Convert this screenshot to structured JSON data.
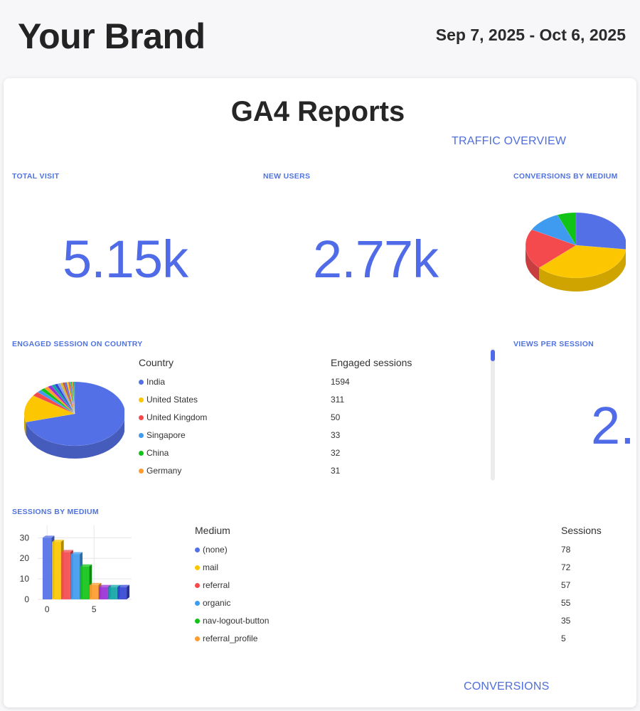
{
  "header": {
    "brand": "Your Brand",
    "date_range": "Sep 7, 2025 - Oct 6, 2025"
  },
  "report": {
    "title": "GA4 Reports",
    "traffic_overview_label": "TRAFFIC OVERVIEW",
    "conversions_label": "CONVERSIONS"
  },
  "widgets": {
    "total_visit": {
      "label": "TOTAL VISIT",
      "value": "5.15k"
    },
    "new_users": {
      "label": "NEW USERS",
      "value": "2.77k"
    },
    "conversions_by_medium": {
      "label": "CONVERSIONS BY MEDIUM"
    },
    "engaged_session_on_country": {
      "label": "ENGAGED SESSION ON COUNTRY",
      "col_country": "Country",
      "col_sessions": "Engaged sessions",
      "rows": [
        {
          "name": "India",
          "value": "1594",
          "color": "#5470e6"
        },
        {
          "name": "United States",
          "value": "311",
          "color": "#fcc700"
        },
        {
          "name": "United Kingdom",
          "value": "50",
          "color": "#f44a4e"
        },
        {
          "name": "Singapore",
          "value": "33",
          "color": "#3f9bf0"
        },
        {
          "name": "China",
          "value": "32",
          "color": "#11c316"
        },
        {
          "name": "Germany",
          "value": "31",
          "color": "#ff9b2f"
        }
      ]
    },
    "views_per_session": {
      "label": "VIEWS PER SESSION",
      "value": "2."
    },
    "sessions_by_medium": {
      "label": "SESSIONS BY MEDIUM",
      "col_medium": "Medium",
      "col_sessions": "Sessions",
      "rows": [
        {
          "name": "(none)",
          "value": "78",
          "color": "#5470e6"
        },
        {
          "name": "mail",
          "value": "72",
          "color": "#fcc700"
        },
        {
          "name": "referral",
          "value": "57",
          "color": "#f44a4e"
        },
        {
          "name": "organic",
          "value": "55",
          "color": "#3f9bf0"
        },
        {
          "name": "nav-logout-button",
          "value": "35",
          "color": "#11c316"
        },
        {
          "name": "referral_profile",
          "value": "5",
          "color": "#ff9b2f"
        }
      ]
    }
  },
  "chart_data": [
    {
      "type": "pie",
      "id": "conversions-by-medium",
      "labels": [
        "(none)",
        "mail",
        "referral",
        "organic",
        "nav-logout-button"
      ],
      "values": [
        27,
        36,
        20,
        11,
        6
      ],
      "colors": [
        "#5470e6",
        "#fcc700",
        "#f44a4e",
        "#3f9bf0",
        "#11c316"
      ]
    },
    {
      "type": "pie",
      "id": "engaged-session-on-country",
      "labels": [
        "India",
        "United States",
        "United Kingdom",
        "Singapore",
        "China",
        "Germany"
      ],
      "values": [
        1594,
        311,
        50,
        33,
        32,
        31
      ],
      "other_values": [
        28,
        25,
        22,
        20,
        18,
        16,
        14,
        12,
        10,
        9,
        8,
        7,
        6,
        5
      ],
      "colors": [
        "#5470e6",
        "#fcc700",
        "#f44a4e",
        "#3f9bf0",
        "#11c316",
        "#ff9b2f",
        "#9b2fd6",
        "#10a5a5",
        "#3345d6",
        "#7ea0f3",
        "#d6b62f",
        "#c05050"
      ]
    },
    {
      "type": "bar",
      "id": "sessions-by-medium",
      "x": [
        0,
        1,
        2,
        3,
        4,
        5,
        6,
        7,
        8
      ],
      "values": [
        30,
        28,
        23,
        22,
        16,
        7,
        6,
        6,
        6
      ],
      "colors": [
        "#5470e6",
        "#fcc700",
        "#f44a4e",
        "#3f9bf0",
        "#11c316",
        "#ff9b2f",
        "#9b2fd6",
        "#10a5a5",
        "#3345d6"
      ],
      "ylim": [
        0,
        36
      ],
      "xlim": [
        -1,
        9
      ],
      "yticks": [
        0,
        10,
        20,
        30
      ],
      "xticks": [
        0,
        5
      ]
    }
  ]
}
